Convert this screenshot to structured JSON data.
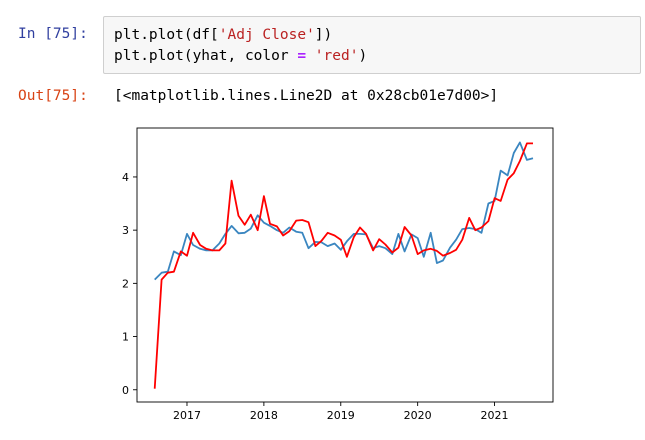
{
  "cell": {
    "in_prompt": "In [75]:",
    "code_line_1": {
      "pre": "plt.plot(df[",
      "str": "'Adj Close'",
      "post": "])"
    },
    "code_line_2": {
      "pre": "plt.plot(yhat, color ",
      "op": "=",
      "mid": " ",
      "str": "'red'",
      "post": ")"
    },
    "out_prompt": "Out[75]:",
    "out_text": "[<matplotlib.lines.Line2D at 0x28cb01e7d00>]"
  },
  "colors": {
    "series_blue": "#3a86c0",
    "series_red": "#ff0000",
    "in_prompt": "#303f9f",
    "out_prompt": "#d84315",
    "string": "#ba2121",
    "operator": "#aa22ff"
  },
  "chart_data": {
    "type": "line",
    "title": "",
    "xlabel": "",
    "ylabel": "",
    "xlim": [
      2016.35,
      2021.76
    ],
    "ylim": [
      -0.23,
      4.92
    ],
    "x_ticks": [
      {
        "value": 2017,
        "label": "2017"
      },
      {
        "value": 2018,
        "label": "2018"
      },
      {
        "value": 2019,
        "label": "2019"
      },
      {
        "value": 2020,
        "label": "2020"
      },
      {
        "value": 2021,
        "label": "2021"
      }
    ],
    "y_ticks": [
      {
        "value": 0,
        "label": "0"
      },
      {
        "value": 1,
        "label": "1"
      },
      {
        "value": 2,
        "label": "2"
      },
      {
        "value": 3,
        "label": "3"
      },
      {
        "value": 4,
        "label": "4"
      }
    ],
    "grid": false,
    "series": [
      {
        "color": "#3a86c0",
        "x": [
          2016.58,
          2016.67,
          2016.75,
          2016.83,
          2016.92,
          2017.0,
          2017.08,
          2017.17,
          2017.25,
          2017.33,
          2017.42,
          2017.5,
          2017.58,
          2017.67,
          2017.75,
          2017.83,
          2017.92,
          2018.0,
          2018.08,
          2018.17,
          2018.25,
          2018.33,
          2018.42,
          2018.5,
          2018.58,
          2018.67,
          2018.75,
          2018.83,
          2018.92,
          2019.0,
          2019.08,
          2019.17,
          2019.25,
          2019.33,
          2019.42,
          2019.5,
          2019.58,
          2019.67,
          2019.75,
          2019.83,
          2019.92,
          2020.0,
          2020.08,
          2020.17,
          2020.25,
          2020.33,
          2020.42,
          2020.5,
          2020.58,
          2020.67,
          2020.75,
          2020.83,
          2020.92,
          2021.0,
          2021.08,
          2021.17,
          2021.25,
          2021.33,
          2021.42,
          2021.5
        ],
        "values": [
          2.07,
          2.2,
          2.22,
          2.6,
          2.53,
          2.93,
          2.72,
          2.65,
          2.62,
          2.62,
          2.75,
          2.93,
          3.08,
          2.94,
          2.95,
          3.03,
          3.28,
          3.14,
          3.08,
          3.0,
          2.95,
          3.05,
          2.97,
          2.95,
          2.66,
          2.78,
          2.77,
          2.7,
          2.75,
          2.63,
          2.79,
          2.93,
          2.93,
          2.92,
          2.66,
          2.7,
          2.66,
          2.55,
          2.93,
          2.6,
          2.92,
          2.85,
          2.5,
          2.95,
          2.38,
          2.43,
          2.67,
          2.82,
          3.02,
          3.04,
          3.02,
          2.95,
          3.5,
          3.55,
          4.12,
          4.03,
          4.45,
          4.65,
          4.32,
          4.35
        ]
      },
      {
        "color": "#ff0000",
        "x": [
          2016.58,
          2016.67,
          2016.75,
          2016.83,
          2016.92,
          2017.0,
          2017.08,
          2017.17,
          2017.25,
          2017.33,
          2017.42,
          2017.5,
          2017.58,
          2017.67,
          2017.75,
          2017.83,
          2017.92,
          2018.0,
          2018.08,
          2018.17,
          2018.25,
          2018.33,
          2018.42,
          2018.5,
          2018.58,
          2018.67,
          2018.75,
          2018.83,
          2018.92,
          2019.0,
          2019.08,
          2019.17,
          2019.25,
          2019.33,
          2019.42,
          2019.5,
          2019.58,
          2019.67,
          2019.75,
          2019.83,
          2019.92,
          2020.0,
          2020.08,
          2020.17,
          2020.25,
          2020.33,
          2020.42,
          2020.5,
          2020.58,
          2020.67,
          2020.75,
          2020.83,
          2020.92,
          2021.0,
          2021.08,
          2021.17,
          2021.25,
          2021.33,
          2021.42,
          2021.5
        ],
        "values": [
          0.02,
          2.07,
          2.2,
          2.22,
          2.6,
          2.52,
          2.95,
          2.72,
          2.65,
          2.62,
          2.62,
          2.75,
          3.93,
          3.27,
          3.1,
          3.29,
          3.0,
          3.64,
          3.12,
          3.07,
          2.9,
          2.98,
          3.18,
          3.19,
          3.15,
          2.7,
          2.8,
          2.95,
          2.9,
          2.82,
          2.5,
          2.87,
          3.05,
          2.93,
          2.62,
          2.83,
          2.73,
          2.58,
          2.67,
          3.06,
          2.9,
          2.55,
          2.62,
          2.65,
          2.61,
          2.52,
          2.57,
          2.63,
          2.82,
          3.23,
          3.0,
          3.05,
          3.17,
          3.6,
          3.55,
          3.95,
          4.07,
          4.3,
          4.63,
          4.63
        ]
      }
    ]
  }
}
